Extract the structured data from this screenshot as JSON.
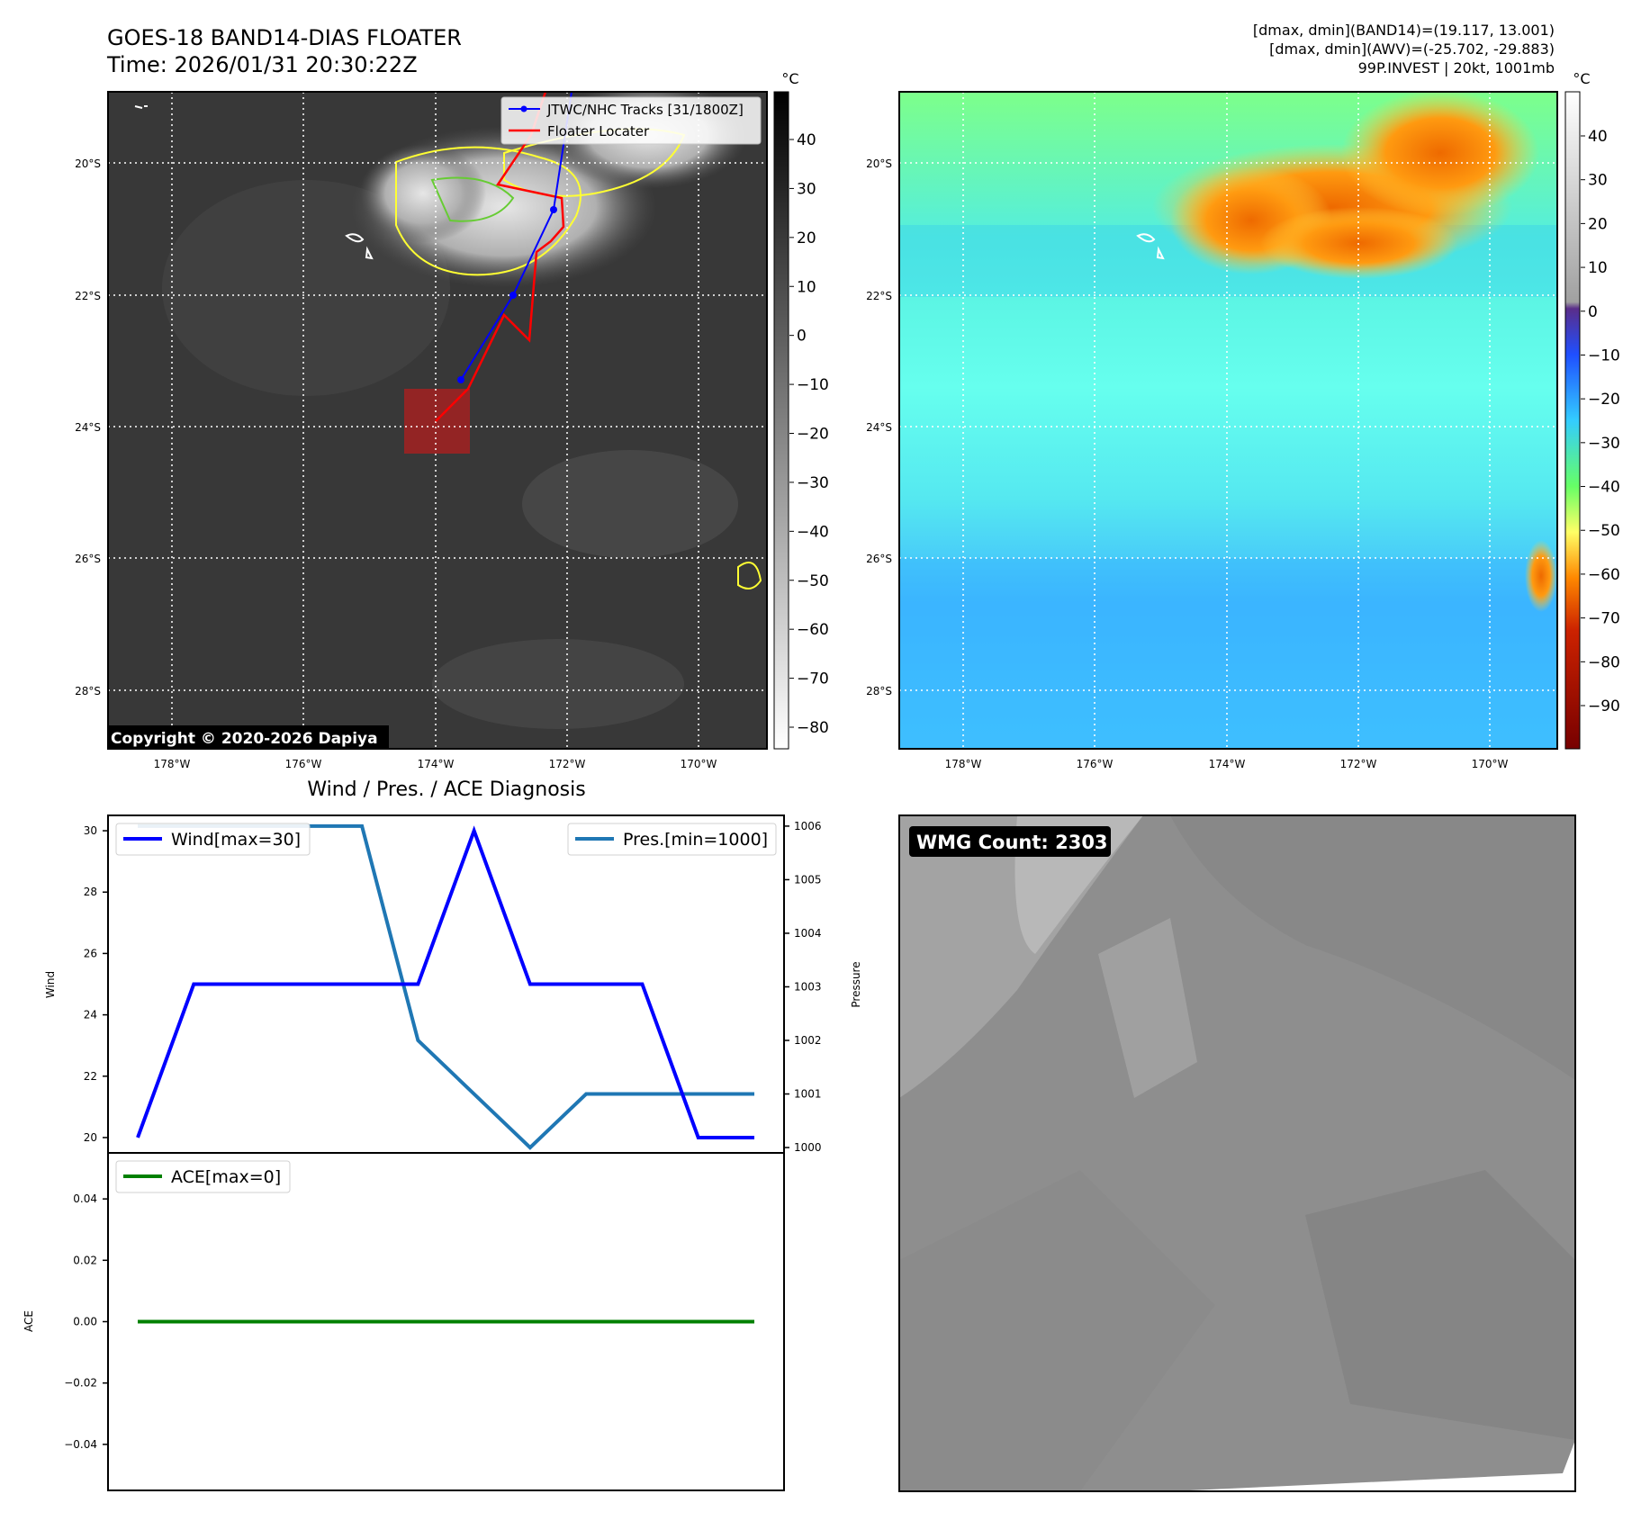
{
  "header": {
    "title_line1": "GOES-18 BAND14-DIAS FLOATER",
    "title_line2": "Time: 2026/01/31 20:30:22Z",
    "stats_line1": "[dmax, dmin](BAND14)=(19.117, 13.001)",
    "stats_line2": "[dmax, dmin](AWV)=(-25.702, -29.883)",
    "stats_line3": "99P.INVEST | 20kt, 1001mb"
  },
  "maps": {
    "unit": "°C",
    "lat_labels": [
      "20°S",
      "22°S",
      "24°S",
      "26°S",
      "28°S"
    ],
    "lon_labels": [
      "178°W",
      "176°W",
      "174°W",
      "172°W",
      "170°W"
    ],
    "legend_track": "JTWC/NHC Tracks [31/1800Z]",
    "legend_floater": "Floater Locater",
    "copyright": "Copyright © 2020-2026 Dapiya",
    "ir_colorbar_ticks": [
      "40",
      "30",
      "20",
      "10",
      "0",
      "−10",
      "−20",
      "−30",
      "−40",
      "−50",
      "−60",
      "−70",
      "−80"
    ],
    "wv_colorbar_ticks": [
      "40",
      "30",
      "20",
      "10",
      "0",
      "−10",
      "−20",
      "−30",
      "−40",
      "−50",
      "−60",
      "−70",
      "−80",
      "−90"
    ],
    "colors": {
      "track": "#0000ff",
      "floater": "#ff0000",
      "contour": "#ffff33"
    }
  },
  "diagnosis": {
    "title": "Wind / Pres. / ACE Diagnosis",
    "wind_ylabel": "Wind",
    "pressure_ylabel": "Pressure",
    "ace_ylabel": "ACE",
    "wind_legend": "Wind[max=30]",
    "pres_legend": "Pres.[min=1000]",
    "ace_legend": "ACE[max=0]",
    "wind_ticks": [
      "30",
      "28",
      "26",
      "24",
      "22",
      "20"
    ],
    "pres_ticks": [
      "1006",
      "1005",
      "1004",
      "1003",
      "1002",
      "1001",
      "1000"
    ],
    "ace_ticks": [
      "0.04",
      "0.02",
      "0.00",
      "−0.02",
      "−0.04"
    ]
  },
  "wmg": {
    "label": "WMG Count: 2303"
  },
  "chart_data": [
    {
      "type": "line",
      "xlabel": "",
      "ylabel": "Wind",
      "ylim": [
        19.5,
        30.5
      ],
      "grid": false,
      "legend": "top-left",
      "series": [
        {
          "name": "Wind[max=30]",
          "color": "#0000ff",
          "x": [
            0,
            1,
            2,
            3,
            4,
            5,
            6,
            7,
            8,
            9,
            10,
            11
          ],
          "values": [
            20,
            25,
            25,
            25,
            25,
            25,
            30,
            25,
            25,
            25,
            20,
            20
          ]
        }
      ]
    },
    {
      "type": "line",
      "xlabel": "",
      "ylabel": "Pressure",
      "ylim": [
        999.9,
        1006.2
      ],
      "grid": false,
      "legend": "top-right",
      "series": [
        {
          "name": "Pres.[min=1000]",
          "color": "#1f77b4",
          "x": [
            0,
            2,
            4,
            5,
            7,
            8,
            9,
            11
          ],
          "values": [
            1006,
            1006,
            1006,
            1002,
            1000,
            1001,
            1001,
            1001
          ]
        }
      ]
    },
    {
      "type": "line",
      "xlabel": "",
      "ylabel": "ACE",
      "ylim": [
        -0.055,
        0.055
      ],
      "grid": false,
      "legend": "top-left",
      "series": [
        {
          "name": "ACE[max=0]",
          "color": "#008000",
          "x": [
            0,
            11
          ],
          "values": [
            0,
            0
          ]
        }
      ]
    }
  ]
}
